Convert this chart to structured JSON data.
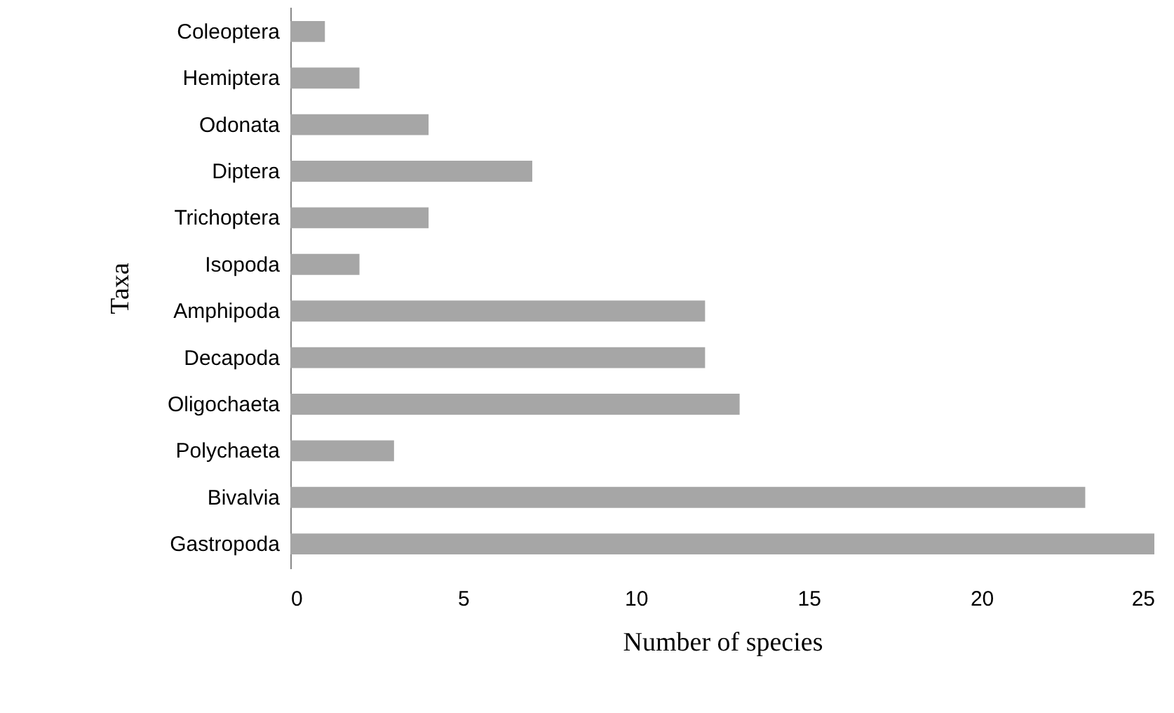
{
  "chart_data": {
    "type": "bar",
    "orientation": "horizontal",
    "xlabel": "Number of species",
    "ylabel": "Taxa",
    "categories": [
      "Coleoptera",
      "Hemiptera",
      "Odonata",
      "Diptera",
      "Trichoptera",
      "Isopoda",
      "Amphipoda",
      "Decapoda",
      "Oligochaeta",
      "Polychaeta",
      "Bivalvia",
      "Gastropoda"
    ],
    "values": [
      1,
      2,
      4,
      7,
      4,
      2,
      12,
      12,
      13,
      3,
      23,
      25
    ],
    "color": "#a6a6a6",
    "xlim": [
      0,
      25
    ],
    "xticks": [
      0,
      5,
      10,
      15,
      20,
      25
    ],
    "grid": false
  }
}
